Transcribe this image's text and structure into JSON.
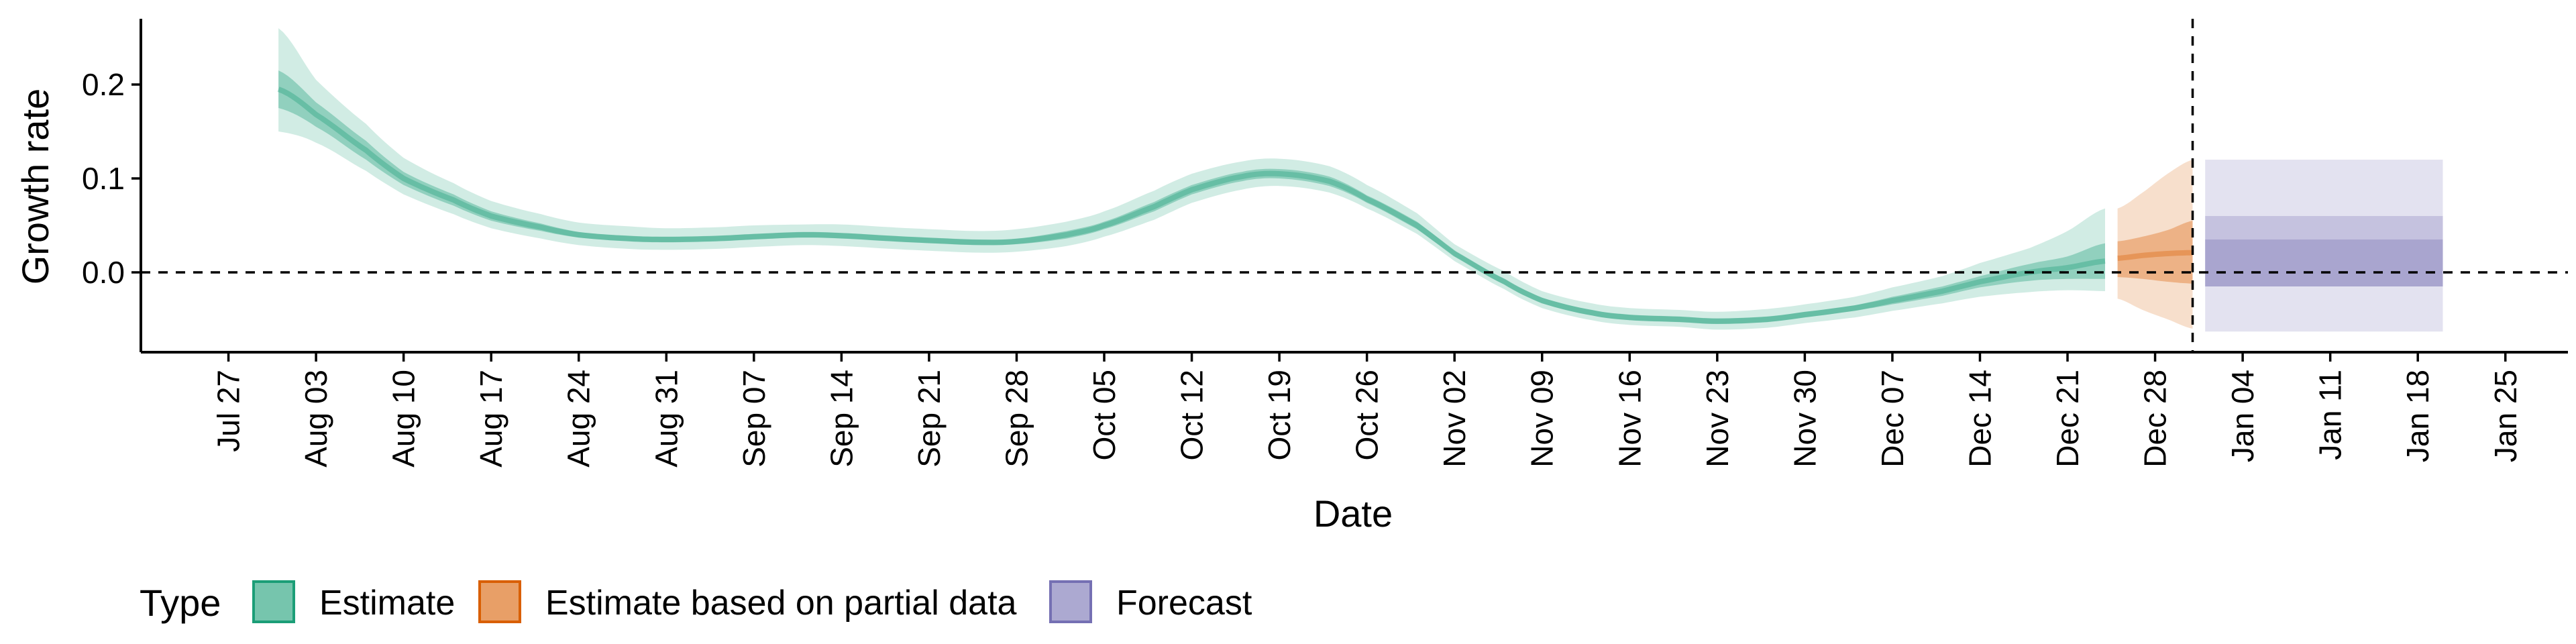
{
  "chart_data": {
    "type": "area",
    "xlabel": "Date",
    "ylabel": "Growth rate",
    "xlim": [
      "2020-07-20",
      "2021-01-30"
    ],
    "ylim": [
      -0.085,
      0.27
    ],
    "x_ticks": [
      "2020-07-27",
      "2020-08-03",
      "2020-08-10",
      "2020-08-17",
      "2020-08-24",
      "2020-08-31",
      "2020-09-07",
      "2020-09-14",
      "2020-09-21",
      "2020-09-28",
      "2020-10-05",
      "2020-10-12",
      "2020-10-19",
      "2020-10-26",
      "2020-11-02",
      "2020-11-09",
      "2020-11-16",
      "2020-11-23",
      "2020-11-30",
      "2020-12-07",
      "2020-12-14",
      "2020-12-21",
      "2020-12-28",
      "2021-01-04",
      "2021-01-11",
      "2021-01-18",
      "2021-01-25"
    ],
    "x_tick_labels": [
      "Jul 27",
      "Aug 03",
      "Aug 10",
      "Aug 17",
      "Aug 24",
      "Aug 31",
      "Sep 07",
      "Sep 14",
      "Sep 21",
      "Sep 28",
      "Oct 05",
      "Oct 12",
      "Oct 19",
      "Oct 26",
      "Nov 02",
      "Nov 09",
      "Nov 16",
      "Nov 23",
      "Nov 30",
      "Dec 07",
      "Dec 14",
      "Dec 21",
      "Dec 28",
      "Jan 04",
      "Jan 11",
      "Jan 18",
      "Jan 25"
    ],
    "y_ticks": [
      0.0,
      0.1,
      0.2
    ],
    "y_tick_labels": [
      "0.0",
      "0.1",
      "0.2"
    ],
    "hline_y": 0.0,
    "vline_x": "2020-12-31",
    "legend": {
      "title": "Type",
      "position": "bottom",
      "entries": [
        {
          "label": "Estimate",
          "color": "#1b9e77"
        },
        {
          "label": "Estimate based on partial data",
          "color": "#d95f02"
        },
        {
          "label": "Forecast",
          "color": "#7570b3"
        }
      ]
    },
    "series": [
      {
        "name": "Estimate",
        "color": "#1b9e77",
        "x": [
          "2020-07-31",
          "2020-08-03",
          "2020-08-07",
          "2020-08-10",
          "2020-08-14",
          "2020-08-17",
          "2020-08-21",
          "2020-08-24",
          "2020-08-28",
          "2020-08-31",
          "2020-09-04",
          "2020-09-07",
          "2020-09-11",
          "2020-09-14",
          "2020-09-18",
          "2020-09-21",
          "2020-09-25",
          "2020-09-28",
          "2020-10-02",
          "2020-10-05",
          "2020-10-09",
          "2020-10-12",
          "2020-10-16",
          "2020-10-19",
          "2020-10-23",
          "2020-10-26",
          "2020-10-30",
          "2020-11-02",
          "2020-11-06",
          "2020-11-09",
          "2020-11-13",
          "2020-11-16",
          "2020-11-20",
          "2020-11-23",
          "2020-11-27",
          "2020-11-30",
          "2020-12-04",
          "2020-12-07",
          "2020-12-11",
          "2020-12-14",
          "2020-12-18",
          "2020-12-21",
          "2020-12-24"
        ],
        "median": [
          0.195,
          0.168,
          0.13,
          0.1,
          0.077,
          0.06,
          0.048,
          0.04,
          0.036,
          0.035,
          0.036,
          0.038,
          0.04,
          0.039,
          0.036,
          0.034,
          0.032,
          0.033,
          0.04,
          0.05,
          0.07,
          0.088,
          0.102,
          0.105,
          0.097,
          0.078,
          0.05,
          0.02,
          -0.01,
          -0.03,
          -0.043,
          -0.048,
          -0.05,
          -0.052,
          -0.05,
          -0.045,
          -0.038,
          -0.03,
          -0.02,
          -0.01,
          0.0,
          0.005,
          0.012
        ],
        "inner_lower": [
          0.175,
          0.155,
          0.12,
          0.093,
          0.071,
          0.055,
          0.044,
          0.037,
          0.033,
          0.032,
          0.033,
          0.035,
          0.037,
          0.036,
          0.033,
          0.031,
          0.029,
          0.03,
          0.036,
          0.046,
          0.065,
          0.083,
          0.097,
          0.1,
          0.092,
          0.074,
          0.046,
          0.017,
          -0.013,
          -0.033,
          -0.046,
          -0.051,
          -0.053,
          -0.055,
          -0.053,
          -0.048,
          -0.041,
          -0.034,
          -0.025,
          -0.016,
          -0.009,
          -0.007,
          -0.007
        ],
        "inner_upper": [
          0.215,
          0.181,
          0.14,
          0.107,
          0.083,
          0.065,
          0.052,
          0.043,
          0.039,
          0.038,
          0.039,
          0.041,
          0.043,
          0.042,
          0.039,
          0.037,
          0.035,
          0.036,
          0.044,
          0.054,
          0.075,
          0.093,
          0.107,
          0.11,
          0.102,
          0.082,
          0.054,
          0.023,
          -0.007,
          -0.027,
          -0.04,
          -0.045,
          -0.047,
          -0.049,
          -0.047,
          -0.042,
          -0.035,
          -0.026,
          -0.015,
          -0.004,
          0.009,
          0.017,
          0.031
        ],
        "outer_lower": [
          0.15,
          0.138,
          0.108,
          0.083,
          0.062,
          0.047,
          0.036,
          0.029,
          0.025,
          0.024,
          0.025,
          0.027,
          0.029,
          0.028,
          0.025,
          0.023,
          0.021,
          0.022,
          0.028,
          0.038,
          0.056,
          0.074,
          0.088,
          0.092,
          0.085,
          0.068,
          0.041,
          0.012,
          -0.018,
          -0.038,
          -0.051,
          -0.056,
          -0.058,
          -0.061,
          -0.059,
          -0.054,
          -0.048,
          -0.041,
          -0.033,
          -0.026,
          -0.021,
          -0.019,
          -0.02
        ],
        "outer_upper": [
          0.26,
          0.205,
          0.158,
          0.122,
          0.095,
          0.076,
          0.062,
          0.053,
          0.049,
          0.047,
          0.048,
          0.05,
          0.051,
          0.051,
          0.048,
          0.046,
          0.044,
          0.046,
          0.054,
          0.065,
          0.087,
          0.105,
          0.118,
          0.121,
          0.113,
          0.093,
          0.063,
          0.03,
          0.001,
          -0.02,
          -0.033,
          -0.038,
          -0.04,
          -0.042,
          -0.039,
          -0.034,
          -0.026,
          -0.016,
          -0.004,
          0.01,
          0.026,
          0.044,
          0.068
        ]
      },
      {
        "name": "Estimate based on partial data",
        "color": "#d95f02",
        "x": [
          "2020-12-25",
          "2020-12-27",
          "2020-12-29",
          "2020-12-31"
        ],
        "median": [
          0.015,
          0.018,
          0.02,
          0.021
        ],
        "inner_lower": [
          -0.005,
          -0.007,
          -0.01,
          -0.012
        ],
        "inner_upper": [
          0.033,
          0.038,
          0.045,
          0.055
        ],
        "outer_lower": [
          -0.028,
          -0.04,
          -0.05,
          -0.06
        ],
        "outer_upper": [
          0.068,
          0.085,
          0.105,
          0.12
        ]
      },
      {
        "name": "Forecast",
        "color": "#7570b3",
        "x": [
          "2021-01-01",
          "2021-01-20"
        ],
        "median": [
          0.01,
          0.01
        ],
        "inner_lower": [
          -0.015,
          -0.015
        ],
        "inner_upper": [
          0.035,
          0.035
        ],
        "mid_lower": [
          -0.015,
          -0.015
        ],
        "mid_upper": [
          0.06,
          0.06
        ],
        "outer_lower": [
          -0.063,
          -0.063
        ],
        "outer_upper": [
          0.12,
          0.12
        ]
      }
    ]
  }
}
